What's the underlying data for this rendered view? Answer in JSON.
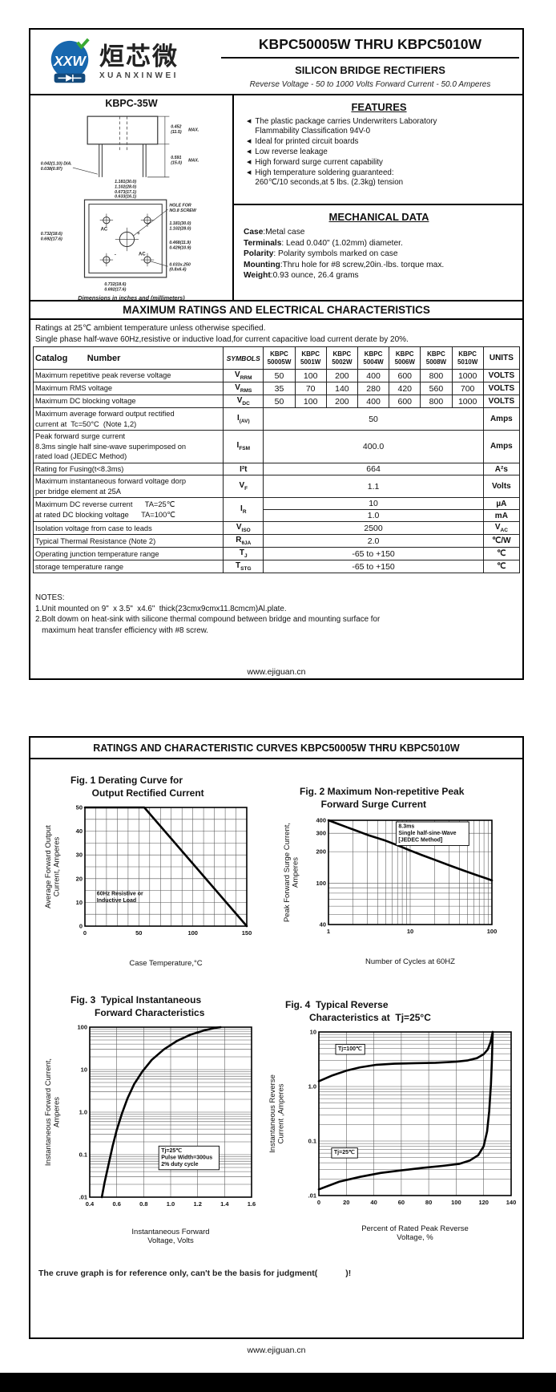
{
  "page1": {
    "logo": {
      "monogram": "XXW",
      "brand_cn": "烜芯微",
      "brand_en": "XUANXINWEI"
    },
    "header": {
      "title": "KBPC50005W THRU KBPC5010W",
      "subtitle": "SILICON BRIDGE RECTIFIERS",
      "tagline": "Reverse Voltage - 50 to 1000 Volts    Forward Current - 50.0 Amperes"
    },
    "package": {
      "name": "KBPC-35W",
      "caption": "Dimensions in inches and (millimeters)",
      "dims": {
        "body_h": [
          "0.452",
          "(11.5)"
        ],
        "lead_l": [
          "0.591",
          "(15.0)"
        ],
        "max": "MAX.",
        "lead_d": [
          "0.042(1.10) DIA.",
          "0.038(0.97)"
        ],
        "top_w": [
          "1.181(30.0)",
          "1.102(28.0)"
        ],
        "hole_sp": [
          "0.673(17.1)",
          "0.633(16.1)"
        ],
        "left_h": [
          "0.732(18.6)",
          "0.692(17.6)"
        ],
        "right_h": [
          "1.181(30.0)",
          "1.102(28.0)"
        ],
        "right_i": [
          "0.468(11.9)",
          "0.429(10.9)"
        ],
        "bot_w": [
          "0.732(18.6)",
          "0.692(17.6)"
        ],
        "slot": [
          "0.033x.250",
          "(0.8x6.4)"
        ],
        "hole": [
          "HOLE FOR",
          "NO.8 SCREW"
        ],
        "t_ac1": "AC",
        "t_plus": "+",
        "t_minus": "-",
        "t_ac2": "AC"
      }
    },
    "features": {
      "title": "FEATURES",
      "bullet": "◀",
      "items": [
        {
          "lines": [
            "The plastic package carries Underwriters Laboratory",
            "Flammability Classification 94V-0"
          ]
        },
        {
          "lines": [
            "Ideal for printed circuit boards"
          ]
        },
        {
          "lines": [
            "Low reverse leakage"
          ]
        },
        {
          "lines": [
            "High forward surge current capability"
          ]
        },
        {
          "lines": [
            "High temperature soldering guaranteed:",
            "260℃/10 seconds,at 5 lbs. (2.3kg) tension"
          ]
        }
      ]
    },
    "mechanical": {
      "title": "MECHANICAL DATA",
      "rows": [
        {
          "b": "Case",
          "t": ":Metal case"
        },
        {
          "b": "Terminals",
          "t": ": Lead 0.040\"  (1.02mm) diameter."
        },
        {
          "b": "Polarity",
          "t": ": Polarity symbols marked on case"
        },
        {
          "b": "Mounting",
          "t": ":Thru hole for #8 screw,20in.-lbs. torque max."
        },
        {
          "b": "Weight",
          "t": ":0.93 ounce, 26.4 grams"
        }
      ]
    },
    "ratings": {
      "title": "MAXIMUM RATINGS AND ELECTRICAL CHARACTERISTICS",
      "preamble": [
        "Ratings at 25℃ ambient temperature unless otherwise specified.",
        "Single phase half-wave 60Hz,resistive or inductive load,for current capacitive load current derate by 20%."
      ],
      "table": {
        "catalog_label": "Catalog        Number",
        "symbols_label": "SYMBOLS",
        "units_label": "UNITS",
        "devices": [
          [
            "KBPC",
            "50005W"
          ],
          [
            "KBPC",
            "5001W"
          ],
          [
            "KBPC",
            "5002W"
          ],
          [
            "KBPC",
            "5004W"
          ],
          [
            "KBPC",
            "5006W"
          ],
          [
            "KBPC",
            "5008W"
          ],
          [
            "KBPC",
            "5010W"
          ]
        ],
        "rows": [
          {
            "param": [
              "Maximum repetitive peak reverse voltage"
            ],
            "symbol": {
              "b": "V",
              "s": "RRM"
            },
            "values": [
              "50",
              "100",
              "200",
              "400",
              "600",
              "800",
              "1000"
            ],
            "units": "VOLTS"
          },
          {
            "param": [
              "Maximum RMS voltage"
            ],
            "symbol": {
              "b": "V",
              "s": "RMS"
            },
            "values": [
              "35",
              "70",
              "140",
              "280",
              "420",
              "560",
              "700"
            ],
            "units": "VOLTS"
          },
          {
            "param": [
              "Maximum DC blocking voltage"
            ],
            "symbol": {
              "b": "V",
              "s": "DC"
            },
            "values": [
              "50",
              "100",
              "200",
              "400",
              "600",
              "800",
              "1000"
            ],
            "units": "VOLTS"
          },
          {
            "param": [
              "Maximum average forward output rectified",
              "current at  Tc=50°C  (Note 1,2)"
            ],
            "symbol": {
              "b": "I",
              "s": "(AV)"
            },
            "span": "50",
            "units": "Amps"
          },
          {
            "param": [
              "Peak forward surge current",
              "8.3ms single half sine-wave superimposed on",
              "rated load (JEDEC Method)"
            ],
            "symbol": {
              "b": "I",
              "s": "FSM"
            },
            "span": "400.0",
            "units": "Amps"
          },
          {
            "param": [
              "Rating for Fusing(t<8.3ms)"
            ],
            "symbol": {
              "b": "I²t",
              "s": ""
            },
            "span": "664",
            "units": "A²s"
          },
          {
            "param": [
              "Maximum instantaneous forward voltage dorp",
              "per bridge element at 25A"
            ],
            "symbol": {
              "b": "V",
              "s": "F"
            },
            "span": "1.1",
            "units": "Volts"
          },
          {
            "param": [
              "Maximum DC reverse current      TA=25℃",
              "at rated DC blocking voltage      TA=100℃"
            ],
            "symbol": {
              "b": "I",
              "s": "R"
            },
            "subrows": [
              {
                "span": "10",
                "units": "µA"
              },
              {
                "span": "1.0",
                "units": "mA"
              }
            ]
          },
          {
            "param": [
              "Isolation voltage from case to leads"
            ],
            "symbol": {
              "b": "V",
              "s": "ISO"
            },
            "span": "2500",
            "units": {
              "b": "V",
              "s": "AC"
            }
          },
          {
            "param": [
              "Typical Thermal Resistance (Note 2)"
            ],
            "symbol": {
              "b": "R",
              "s": "θJA"
            },
            "span": "2.0",
            "units": "℃/W"
          },
          {
            "param": [
              "Operating junction temperature range"
            ],
            "symbol": {
              "b": "T",
              "s": "J"
            },
            "span": "-65 to +150",
            "units": "℃"
          },
          {
            "param": [
              "storage temperature range"
            ],
            "symbol": {
              "b": "T",
              "s": "STG"
            },
            "span": "-65 to +150",
            "units": "℃"
          }
        ]
      },
      "notes": [
        "NOTES:",
        "1.Unit mounted on 9\"  x 3.5\"  x4.6\"  thick(23cmx9cmx11.8cmcm)Al.plate.",
        "2.Bolt dowm on heat-sink with silicone thermal compound between bridge and mounting surface for",
        "   maximum heat transfer efficiency with #8 screw."
      ]
    },
    "footer": "www.ejiguan.cn"
  },
  "page2": {
    "title": "RATINGS AND CHARACTERISTIC CURVES KBPC50005W THRU KBPC5010W",
    "disclaimer": "The cruve graph is for reference only, can't be the basis for judgment(            )!",
    "footer": "www.ejiguan.cn"
  },
  "chart_data": [
    {
      "id": "fig1",
      "type": "line",
      "title_lines": [
        "Fig. 1 Derating Curve for",
        "        Output Rectified Current"
      ],
      "x_scale": "linear",
      "y_scale": "linear",
      "xlim": [
        0,
        150
      ],
      "ylim": [
        0,
        50
      ],
      "x_grid": [
        10,
        20,
        30,
        40,
        50,
        60,
        70,
        80,
        90,
        100,
        110,
        120,
        130,
        140
      ],
      "y_grid": [
        5,
        10,
        15,
        20,
        25,
        30,
        35,
        40,
        45
      ],
      "x_ticks": [
        {
          "v": 0,
          "l": "0"
        },
        {
          "v": 50,
          "l": "50"
        },
        {
          "v": 100,
          "l": "100"
        },
        {
          "v": 150,
          "l": "150"
        }
      ],
      "y_ticks": [
        {
          "v": 0,
          "l": "0"
        },
        {
          "v": 10,
          "l": "10"
        },
        {
          "v": 20,
          "l": "20"
        },
        {
          "v": 30,
          "l": "30"
        },
        {
          "v": 40,
          "l": "40"
        },
        {
          "v": 50,
          "l": "50"
        }
      ],
      "xlabel_lines": [
        "Case Temperature,°C"
      ],
      "ylabel_lines": [
        "Average Forward Output",
        "Current, Amperes"
      ],
      "series": [
        {
          "name": "derating",
          "points": [
            [
              0,
              50
            ],
            [
              55,
              50
            ],
            [
              150,
              0
            ]
          ]
        }
      ],
      "annotations": [
        {
          "x": 11,
          "y": 13,
          "lines": [
            "60Hz Resistive or",
            "Inductive Load"
          ],
          "box": false
        }
      ]
    },
    {
      "id": "fig2",
      "type": "line",
      "title_lines": [
        "Fig. 2 Maximum Non-repetitive Peak",
        "        Forward Surge Current"
      ],
      "x_scale": "log",
      "y_scale": "log",
      "xlim": [
        1,
        100
      ],
      "ylim": [
        40,
        400
      ],
      "x_ticks": [
        {
          "v": 1,
          "l": "1"
        },
        {
          "v": 10,
          "l": "10"
        },
        {
          "v": 100,
          "l": "100"
        }
      ],
      "y_ticks": [
        {
          "v": 400,
          "l": "400"
        },
        {
          "v": 300,
          "l": "300"
        },
        {
          "v": 200,
          "l": "200"
        },
        {
          "v": 100,
          "l": "100"
        },
        {
          "v": 40,
          "l": "40"
        }
      ],
      "xlabel_lines": [
        "Number of Cycles at 60HZ"
      ],
      "ylabel_lines": [
        "Peak Forward Surge Current,",
        "Amperes"
      ],
      "series": [
        {
          "name": "surge",
          "points": [
            [
              1,
              400
            ],
            [
              1.3,
              370
            ],
            [
              1.7,
              342
            ],
            [
              2.2,
              318
            ],
            [
              3,
              290
            ],
            [
              4,
              270
            ],
            [
              5,
              255
            ],
            [
              7,
              230
            ],
            [
              10,
              205
            ],
            [
              14,
              185
            ],
            [
              20,
              167
            ],
            [
              30,
              148
            ],
            [
              45,
              132
            ],
            [
              65,
              119
            ],
            [
              85,
              111
            ],
            [
              100,
              106
            ]
          ]
        }
      ],
      "annotations": [
        {
          "x": 7.2,
          "y": 338,
          "lines": [
            "8.3ms",
            "Single half-sine-Wave",
            "[JEDEC Method]"
          ],
          "box": true
        }
      ]
    },
    {
      "id": "fig3",
      "type": "line",
      "title_lines": [
        "Fig. 3  Typical Instantaneous",
        "         Forward Characteristics"
      ],
      "x_scale": "linear",
      "y_scale": "log",
      "xlim": [
        0.4,
        1.6
      ],
      "ylim": [
        0.01,
        100
      ],
      "x_grid": [
        0.6,
        0.8,
        1.0,
        1.2,
        1.4
      ],
      "x_ticks": [
        {
          "v": 0.4,
          "l": "0.4"
        },
        {
          "v": 0.6,
          "l": "0.6"
        },
        {
          "v": 0.8,
          "l": "0.8"
        },
        {
          "v": 1.0,
          "l": "1.0"
        },
        {
          "v": 1.2,
          "l": "1.2"
        },
        {
          "v": 1.4,
          "l": "1.4"
        },
        {
          "v": 1.6,
          "l": "1.6"
        }
      ],
      "y_ticks": [
        {
          "v": 100,
          "l": "100"
        },
        {
          "v": 10,
          "l": "10"
        },
        {
          "v": 1,
          "l": "1.0"
        },
        {
          "v": 0.1,
          "l": "0.1"
        },
        {
          "v": 0.01,
          "l": ".01"
        }
      ],
      "xlabel_lines": [
        "Instantaneous Forward",
        "Voltage, Volts"
      ],
      "ylabel_lines": [
        "Instantaneous Forward Current,",
        "Amperes"
      ],
      "series": [
        {
          "name": "forward",
          "points": [
            [
              0.49,
              0.01
            ],
            [
              0.51,
              0.022
            ],
            [
              0.54,
              0.06
            ],
            [
              0.57,
              0.16
            ],
            [
              0.6,
              0.38
            ],
            [
              0.64,
              0.95
            ],
            [
              0.68,
              2.1
            ],
            [
              0.73,
              4.6
            ],
            [
              0.79,
              9
            ],
            [
              0.86,
              17
            ],
            [
              0.95,
              30
            ],
            [
              1.05,
              48
            ],
            [
              1.15,
              67
            ],
            [
              1.25,
              84
            ],
            [
              1.33,
              96
            ],
            [
              1.37,
              100
            ]
          ]
        }
      ],
      "annotations": [
        {
          "x": 0.93,
          "y": 0.115,
          "lines": [
            "Tj=25℃",
            "Pulse Width=300us",
            "2% duty cycle"
          ],
          "box": true
        }
      ]
    },
    {
      "id": "fig4",
      "type": "line",
      "title_lines": [
        "Fig. 4  Typical Reverse",
        "         Characteristics at  Tj=25°C"
      ],
      "x_scale": "linear",
      "y_scale": "log",
      "xlim": [
        0,
        140
      ],
      "ylim": [
        0.01,
        10
      ],
      "x_grid": [
        20,
        40,
        60,
        80,
        100,
        120
      ],
      "x_ticks": [
        {
          "v": 0,
          "l": "0"
        },
        {
          "v": 20,
          "l": "20"
        },
        {
          "v": 40,
          "l": "40"
        },
        {
          "v": 60,
          "l": "60"
        },
        {
          "v": 80,
          "l": "80"
        },
        {
          "v": 100,
          "l": "100"
        },
        {
          "v": 120,
          "l": "120"
        },
        {
          "v": 140,
          "l": "140"
        }
      ],
      "y_ticks": [
        {
          "v": 10,
          "l": "10"
        },
        {
          "v": 1,
          "l": "1.0"
        },
        {
          "v": 0.1,
          "l": "0.1"
        },
        {
          "v": 0.01,
          "l": ".01"
        }
      ],
      "xlabel_lines": [
        "Percent of Rated Peak Reverse",
        "Voltage, %"
      ],
      "ylabel_lines": [
        "Instantaneous Reverse",
        "Current ,Amperes"
      ],
      "series": [
        {
          "name": "Tj=100℃",
          "points": [
            [
              0,
              1.25
            ],
            [
              10,
              1.6
            ],
            [
              20,
              1.95
            ],
            [
              30,
              2.25
            ],
            [
              42,
              2.5
            ],
            [
              55,
              2.62
            ],
            [
              70,
              2.68
            ],
            [
              85,
              2.72
            ],
            [
              100,
              2.85
            ],
            [
              108,
              3.0
            ],
            [
              115,
              3.3
            ],
            [
              120,
              3.9
            ],
            [
              123,
              4.8
            ],
            [
              125,
              6.5
            ],
            [
              126,
              8.5
            ],
            [
              126.6,
              10
            ]
          ]
        },
        {
          "name": "Tj=25℃",
          "points": [
            [
              0,
              0.013
            ],
            [
              15,
              0.018
            ],
            [
              30,
              0.022
            ],
            [
              45,
              0.026
            ],
            [
              60,
              0.029
            ],
            [
              75,
              0.032
            ],
            [
              90,
              0.035
            ],
            [
              102,
              0.038
            ],
            [
              110,
              0.044
            ],
            [
              116,
              0.055
            ],
            [
              120,
              0.08
            ],
            [
              122.5,
              0.15
            ],
            [
              124,
              0.35
            ],
            [
              125.3,
              1.1
            ],
            [
              126,
              3
            ],
            [
              126.6,
              10
            ]
          ]
        }
      ],
      "annotations": [
        {
          "x": 14,
          "y": 4.6,
          "lines": [
            "Tj=100℃"
          ],
          "box": true
        },
        {
          "x": 11,
          "y": 0.058,
          "lines": [
            "Tj=25℃"
          ],
          "box": true
        }
      ]
    }
  ]
}
